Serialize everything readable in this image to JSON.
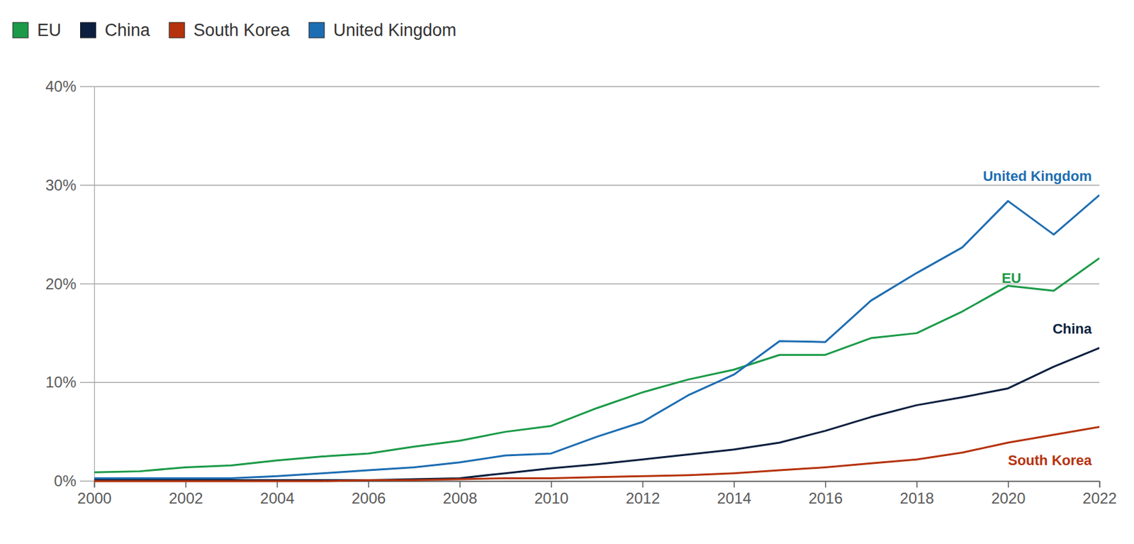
{
  "chart_data": {
    "type": "line",
    "x": [
      2000,
      2001,
      2002,
      2003,
      2004,
      2005,
      2006,
      2007,
      2008,
      2009,
      2010,
      2011,
      2012,
      2013,
      2014,
      2015,
      2016,
      2017,
      2018,
      2019,
      2020,
      2021,
      2022
    ],
    "xlim": [
      2000,
      2022
    ],
    "xticks": [
      2000,
      2002,
      2004,
      2006,
      2008,
      2010,
      2012,
      2014,
      2016,
      2018,
      2020,
      2022
    ],
    "ylim": [
      0,
      40
    ],
    "yticks": [
      {
        "value": 0,
        "label": "0%"
      },
      {
        "value": 10,
        "label": "10%"
      },
      {
        "value": 20,
        "label": "20%"
      },
      {
        "value": 30,
        "label": "30%"
      },
      {
        "value": 40,
        "label": "40%"
      }
    ],
    "grid": true,
    "legend": "top-left",
    "series": [
      {
        "name": "EU",
        "color": "#1b9a48",
        "values": [
          0.9,
          1.0,
          1.4,
          1.6,
          2.1,
          2.5,
          2.8,
          3.5,
          4.1,
          5.0,
          5.6,
          7.4,
          9.0,
          10.3,
          11.3,
          12.8,
          12.8,
          14.5,
          15.0,
          17.2,
          19.8,
          19.3,
          22.6
        ]
      },
      {
        "name": "China",
        "color": "#0c1f3f",
        "values": [
          0.1,
          0.1,
          0.1,
          0.1,
          0.1,
          0.1,
          0.1,
          0.2,
          0.3,
          0.8,
          1.3,
          1.7,
          2.2,
          2.7,
          3.2,
          3.9,
          5.1,
          6.5,
          7.7,
          8.5,
          9.4,
          11.6,
          13.5
        ]
      },
      {
        "name": "South Korea",
        "color": "#b5320c",
        "values": [
          0.0,
          0.0,
          0.0,
          0.0,
          0.0,
          0.0,
          0.1,
          0.1,
          0.2,
          0.3,
          0.3,
          0.4,
          0.5,
          0.6,
          0.8,
          1.1,
          1.4,
          1.8,
          2.2,
          2.9,
          3.9,
          4.7,
          5.5
        ]
      },
      {
        "name": "United Kingdom",
        "color": "#1d6db2",
        "values": [
          0.3,
          0.3,
          0.3,
          0.3,
          0.5,
          0.8,
          1.1,
          1.4,
          1.9,
          2.6,
          2.8,
          4.5,
          6.0,
          8.7,
          10.8,
          14.2,
          14.1,
          18.3,
          21.1,
          23.7,
          28.4,
          25.0,
          29.0
        ]
      }
    ]
  }
}
